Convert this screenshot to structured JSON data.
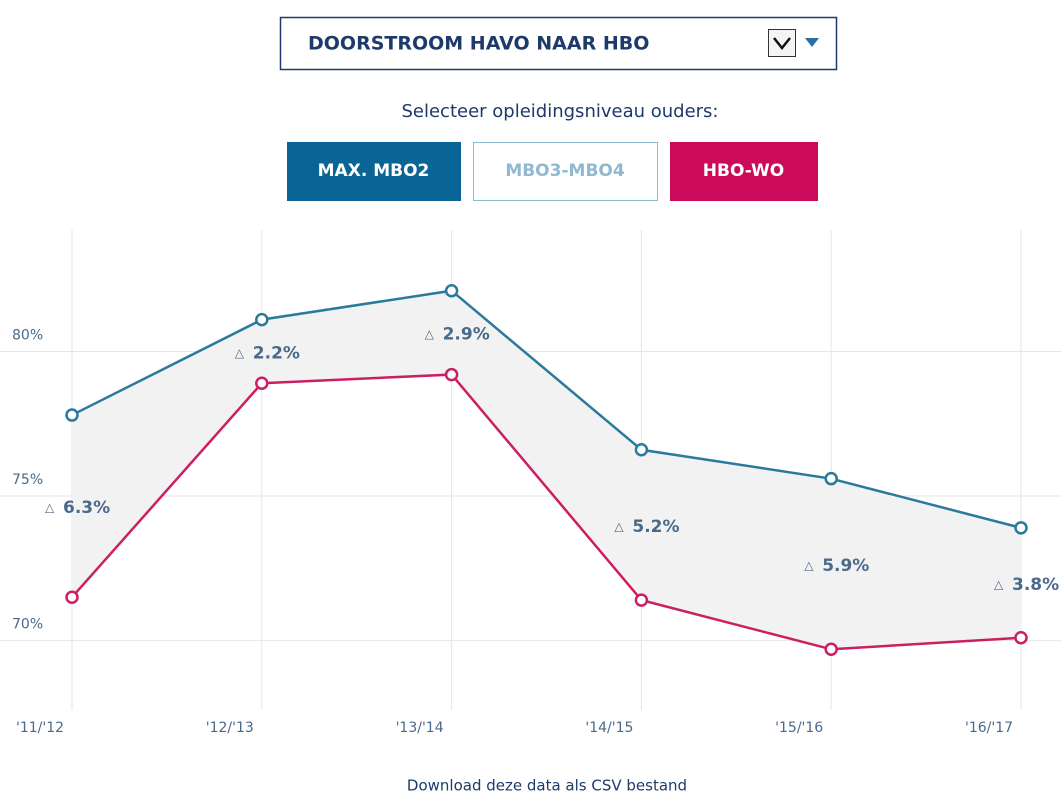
{
  "dropdown": {
    "label": "DOORSTROOM HAVO NAAR HBO"
  },
  "prompt": "Selecteer opleidingsniveau ouders:",
  "chart_data": {
    "type": "line",
    "categories": [
      "'11/'12",
      "'12/'13",
      "'13/'14",
      "'14/'15",
      "'15/'16",
      "'16/'17"
    ],
    "series": [
      {
        "name": "MAX. MBO2",
        "color": "#2a7a9c",
        "values": [
          77.8,
          81.1,
          82.1,
          76.6,
          75.6,
          73.9
        ]
      },
      {
        "name": "MBO3-MBO4",
        "color": "#8fb9d1",
        "values": [
          null,
          null,
          null,
          null,
          null,
          null
        ]
      },
      {
        "name": "HBO-WO",
        "color": "#cc1e63",
        "values": [
          71.5,
          78.9,
          79.2,
          71.4,
          69.7,
          70.1
        ]
      }
    ],
    "difference_symbol": "△",
    "differences": {
      "values": [
        6.3,
        2.2,
        2.9,
        5.2,
        5.9,
        3.8
      ],
      "value_labels": [
        "6.3%",
        "2.2%",
        "2.9%",
        "5.2%",
        "5.9%",
        "3.8%"
      ]
    },
    "ylim": [
      67.6,
      84.2
    ],
    "yticks": [
      {
        "value": 70,
        "label": "70%"
      },
      {
        "value": 75,
        "label": "75%"
      },
      {
        "value": 80,
        "label": "80%"
      }
    ],
    "grid": true
  },
  "download_link": "Download deze data als CSV bestand"
}
